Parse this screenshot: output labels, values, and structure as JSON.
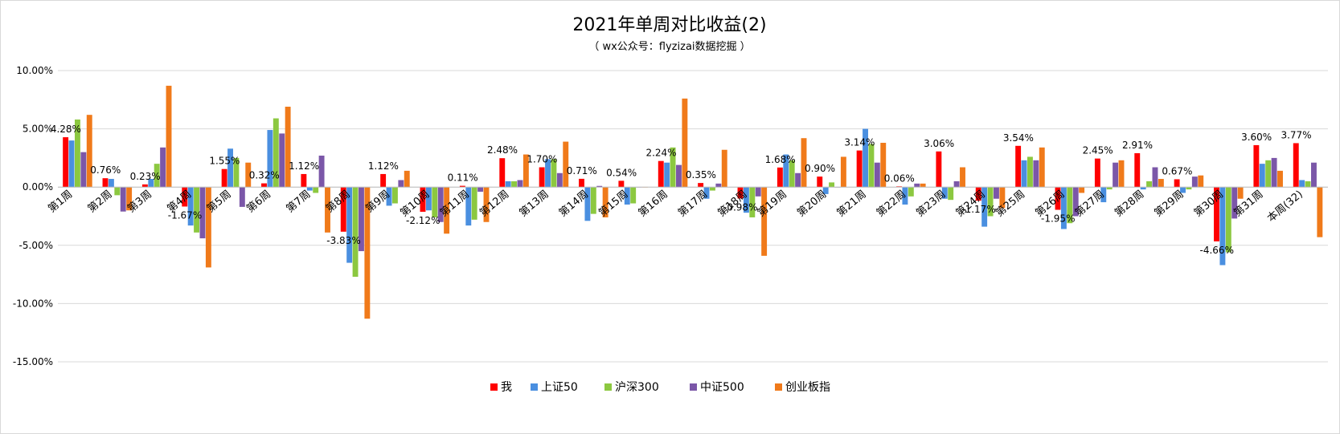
{
  "chart_data": {
    "type": "bar",
    "title": "2021年单周对比收益(2)",
    "subtitle": "（ wx公众号：flyzizai数据挖掘 ）",
    "xlabel": "",
    "ylabel": "",
    "ylim": [
      -15,
      10
    ],
    "yticks": [
      "10.00%",
      "5.00%",
      "0.00%",
      "-5.00%",
      "-10.00%",
      "-15.00%"
    ],
    "ytick_values": [
      10,
      5,
      0,
      -5,
      -10,
      -15
    ],
    "grid": true,
    "legend_position": "bottom",
    "categories": [
      "第1周",
      "第2周",
      "第3周",
      "第4周",
      "第5周",
      "第6周",
      "第7周",
      "第8周",
      "第9周",
      "第10周",
      "第11周",
      "第12周",
      "第13周",
      "第14周",
      "第15周",
      "第16周",
      "第17周",
      "第18周",
      "第19周",
      "第20周",
      "第21周",
      "第22周",
      "第23周",
      "第24周",
      "第25周",
      "第26周",
      "第27周",
      "第28周",
      "第29周",
      "第30周",
      "第31周",
      "本周(32)"
    ],
    "series": [
      {
        "name": "我",
        "color": "#ff0000",
        "values": [
          4.28,
          0.76,
          0.23,
          -1.67,
          1.55,
          0.32,
          1.12,
          -3.83,
          1.12,
          -2.12,
          0.11,
          2.48,
          1.7,
          0.71,
          0.54,
          2.24,
          0.35,
          -0.98,
          1.68,
          0.9,
          3.14,
          0.06,
          3.06,
          -1.17,
          3.54,
          -1.95,
          2.45,
          2.91,
          0.67,
          -4.66,
          3.6,
          3.77
        ],
        "labels": [
          "4.28%",
          "0.76%",
          "0.23%",
          "-1.67%",
          "1.55%",
          "0.32%",
          "1.12%",
          "-3.83%",
          "1.12%",
          "-2.12%",
          "0.11%",
          "2.48%",
          "1.70%",
          "0.71%",
          "0.54%",
          "2.24%",
          "0.35%",
          "-0.98%",
          "1.68%",
          "0.90%",
          "3.14%",
          "0.06%",
          "3.06%",
          "-1.17%",
          "3.54%",
          "-1.95%",
          "2.45%",
          "2.91%",
          "0.67%",
          "-4.66%",
          "3.60%",
          "3.77%"
        ]
      },
      {
        "name": "上证50",
        "color": "#4a8fe0",
        "values": [
          4.0,
          0.7,
          0.7,
          -3.3,
          3.3,
          4.9,
          -0.3,
          -6.5,
          -1.6,
          -2.0,
          -3.3,
          0.5,
          2.4,
          -2.9,
          -1.5,
          2.1,
          -1.0,
          -2.2,
          2.8,
          -0.6,
          5.0,
          -1.5,
          -1.0,
          -3.4,
          2.3,
          -3.6,
          -1.3,
          -0.2,
          -0.5,
          -6.7,
          2.0,
          0.6
        ]
      },
      {
        "name": "沪深300",
        "color": "#8cc840",
        "values": [
          5.8,
          -0.7,
          2.0,
          -3.9,
          2.5,
          5.9,
          -0.5,
          -7.7,
          -1.4,
          -2.6,
          -2.8,
          0.5,
          2.4,
          -2.3,
          -1.4,
          3.4,
          -0.3,
          -2.6,
          2.3,
          0.4,
          3.7,
          -0.8,
          -1.1,
          -2.5,
          2.6,
          -3.1,
          -0.2,
          0.5,
          -0.2,
          -5.6,
          2.3,
          0.5
        ]
      },
      {
        "name": "中证500",
        "color": "#7b57a8",
        "values": [
          3.0,
          -2.1,
          3.4,
          -4.4,
          -1.7,
          4.6,
          2.7,
          -5.5,
          0.6,
          -3.0,
          -0.4,
          0.6,
          1.2,
          0.1,
          0.0,
          1.9,
          0.3,
          -0.8,
          1.2,
          0.0,
          2.1,
          0.3,
          0.5,
          -1.0,
          2.3,
          -2.5,
          2.1,
          1.7,
          0.9,
          -2.7,
          2.5,
          2.1
        ]
      },
      {
        "name": "创业板指",
        "color": "#f07a1a",
        "values": [
          6.2,
          -2.0,
          8.7,
          -6.9,
          2.1,
          6.9,
          -3.9,
          -11.3,
          1.4,
          -4.0,
          -3.0,
          2.8,
          3.9,
          -2.6,
          0.0,
          7.6,
          3.2,
          -5.9,
          4.2,
          2.6,
          3.8,
          0.3,
          1.7,
          -1.8,
          3.4,
          -0.5,
          2.3,
          0.7,
          1.0,
          -1.0,
          1.4,
          -4.3
        ]
      }
    ]
  }
}
